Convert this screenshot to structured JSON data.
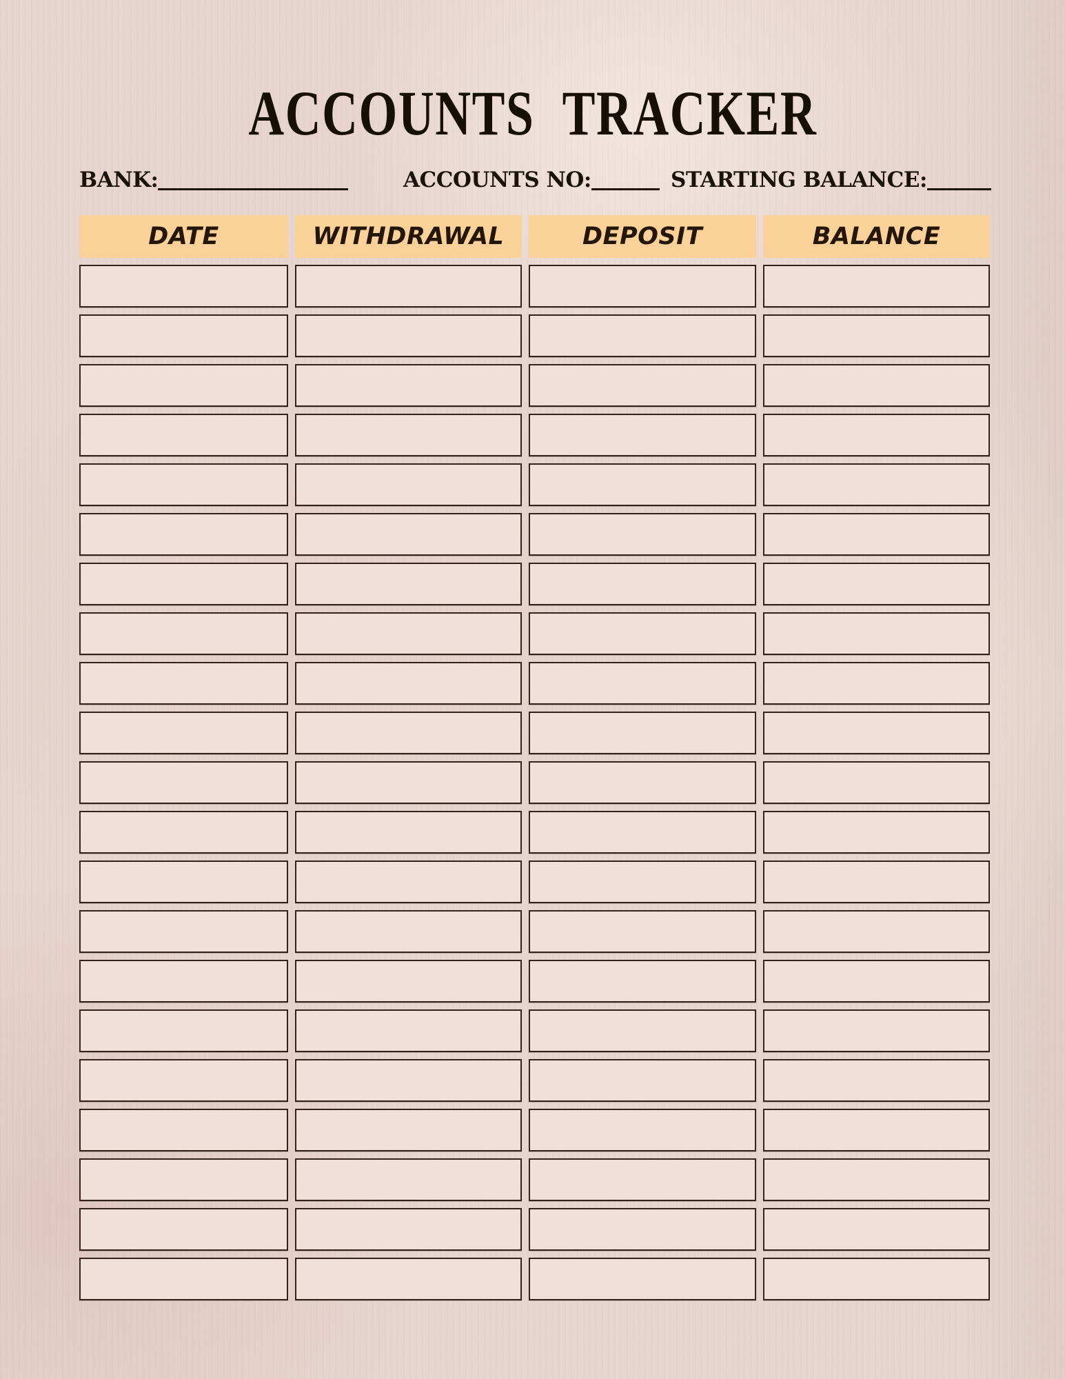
{
  "title": "ACCOUNTS TRACKER",
  "info_fields": [
    {
      "label": "BANK:",
      "value": ""
    },
    {
      "label": "ACCOUNTS NO:",
      "value": ""
    },
    {
      "label": "STARTING BALANCE:",
      "value": ""
    }
  ],
  "table": {
    "columns": [
      "DATE",
      "WITHDRAWAL",
      "DEPOSIT",
      "BALANCE"
    ],
    "row_count": 21,
    "all_cells_empty": true
  },
  "colors": {
    "page_background": "#e8d5cf",
    "header_background": "#fad29a",
    "cell_background": "#f2e1da",
    "cell_border": "#35211a",
    "text": "#1c1310"
  }
}
